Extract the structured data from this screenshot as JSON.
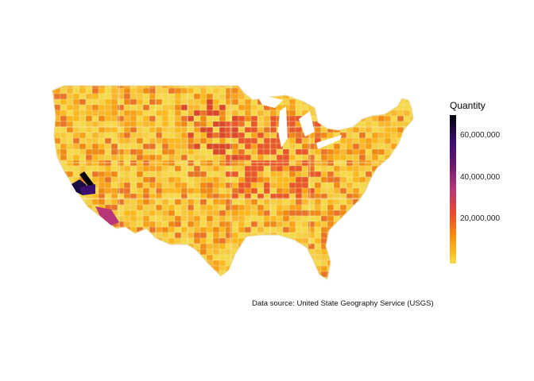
{
  "map": {
    "variable": "Quantity",
    "color_scale": "inferno (reversed: low = yellow, high = black)",
    "colors": {
      "low": "#f5db4b",
      "mid": "#e8482c",
      "high": "#000004",
      "state_border": "#e6d9a8"
    }
  },
  "legend": {
    "title": "Quantity",
    "ticks": [
      "60,000,000",
      "40,000,000",
      "20,000,000"
    ],
    "tick_values": [
      60000000,
      40000000,
      20000000
    ],
    "range": [
      0,
      70000000
    ]
  },
  "caption": "Data source: United State Geography Service (USGS)"
}
